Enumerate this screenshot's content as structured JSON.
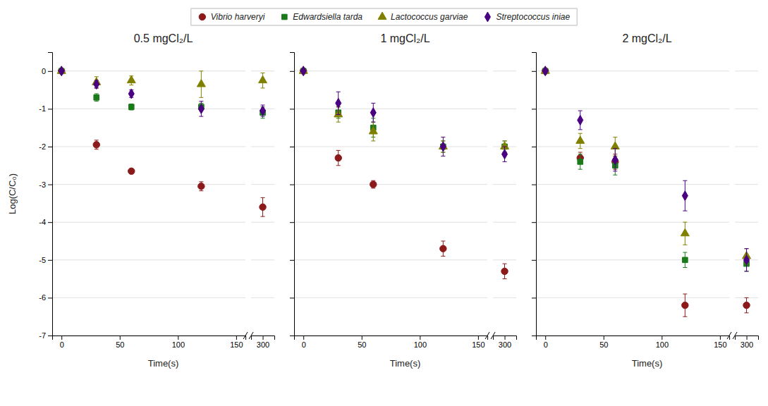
{
  "chart_data": [
    {
      "type": "scatter",
      "title": "0.5 mgCl₂/L",
      "xlabel": "Time(s)",
      "ylabel": "Log(C/C₀)",
      "xlim": [
        -8,
        312
      ],
      "xticks": [
        0,
        50,
        100,
        150,
        300
      ],
      "ylim": [
        -7,
        0.5
      ],
      "yticks": [
        0,
        -1,
        -2,
        -3,
        -4,
        -5,
        -6,
        -7
      ],
      "grid": true,
      "legend": "top",
      "series": [
        {
          "name": "Vibrio harveryi",
          "color": "#8B1A1A",
          "marker": "circle",
          "x": [
            0,
            30,
            60,
            120,
            300
          ],
          "values": [
            0,
            -1.95,
            -2.65,
            -3.05,
            -3.6
          ],
          "yerr": [
            0,
            0.12,
            0.0,
            0.12,
            0.25
          ]
        },
        {
          "name": "Edwardsiella tarda",
          "color": "#1a7a1a",
          "marker": "square",
          "x": [
            0,
            30,
            60,
            120,
            300
          ],
          "values": [
            0,
            -0.7,
            -0.95,
            -0.95,
            -1.1
          ],
          "yerr": [
            0,
            0.1,
            0.08,
            0.1,
            0.15
          ]
        },
        {
          "name": "Lactococcus garviae",
          "color": "#808000",
          "marker": "triangle",
          "x": [
            0,
            30,
            60,
            120,
            300
          ],
          "values": [
            0,
            -0.3,
            -0.25,
            -0.35,
            -0.25
          ],
          "yerr": [
            0,
            0.15,
            0.12,
            0.35,
            0.2
          ]
        },
        {
          "name": "Streptococcus iniae",
          "color": "#4B0082",
          "marker": "diamond",
          "x": [
            0,
            30,
            60,
            120,
            300
          ],
          "values": [
            0,
            -0.35,
            -0.6,
            -1.0,
            -1.05
          ],
          "yerr": [
            0,
            0.1,
            0.1,
            0.2,
            0.15
          ]
        }
      ]
    },
    {
      "type": "scatter",
      "title": "1 mgCl₂/L",
      "xlabel": "Time(s)",
      "xlim": [
        -8,
        312
      ],
      "xticks": [
        0,
        50,
        100,
        150,
        300
      ],
      "ylim": [
        -7,
        0.5
      ],
      "yticks": [
        0,
        -1,
        -2,
        -3,
        -4,
        -5,
        -6,
        -7
      ],
      "grid": true,
      "tick_labels": "x",
      "series": [
        {
          "name": "Vibrio harveryi",
          "color": "#8B1A1A",
          "marker": "circle",
          "x": [
            0,
            30,
            60,
            120,
            300
          ],
          "values": [
            0,
            -2.3,
            -3.0,
            -4.7,
            -5.3
          ],
          "yerr": [
            0,
            0.2,
            0.1,
            0.2,
            0.2
          ]
        },
        {
          "name": "Edwardsiella tarda",
          "color": "#1a7a1a",
          "marker": "square",
          "x": [
            0,
            30,
            60,
            120,
            300
          ],
          "values": [
            0,
            -1.1,
            -1.5,
            -2.0,
            -2.0
          ],
          "yerr": [
            0,
            0.15,
            0.25,
            0.15,
            0.15
          ]
        },
        {
          "name": "Lactococcus garviae",
          "color": "#808000",
          "marker": "triangle",
          "x": [
            0,
            30,
            60,
            120,
            300
          ],
          "values": [
            0,
            -1.15,
            -1.6,
            -2.0,
            -2.0
          ],
          "yerr": [
            0,
            0.2,
            0.25,
            0.15,
            0.15
          ]
        },
        {
          "name": "Streptococcus iniae",
          "color": "#4B0082",
          "marker": "diamond",
          "x": [
            0,
            30,
            60,
            120,
            300
          ],
          "values": [
            0,
            -0.85,
            -1.1,
            -2.0,
            -2.2
          ],
          "yerr": [
            0,
            0.3,
            0.25,
            0.25,
            0.2
          ]
        }
      ]
    },
    {
      "type": "scatter",
      "title": "2 mgCl₂/L",
      "xlabel": "Time(s)",
      "xlim": [
        -8,
        312
      ],
      "xticks": [
        0,
        50,
        100,
        150,
        300
      ],
      "ylim": [
        -7,
        0.5
      ],
      "yticks": [
        0,
        -1,
        -2,
        -3,
        -4,
        -5,
        -6,
        -7
      ],
      "grid": true,
      "tick_labels": "x",
      "series": [
        {
          "name": "Vibrio harveryi",
          "color": "#8B1A1A",
          "marker": "circle",
          "x": [
            0,
            30,
            60,
            120,
            300
          ],
          "values": [
            0,
            -2.3,
            -2.4,
            -6.2,
            -6.2
          ],
          "yerr": [
            0,
            0.15,
            0.2,
            0.3,
            0.2
          ]
        },
        {
          "name": "Edwardsiella tarda",
          "color": "#1a7a1a",
          "marker": "square",
          "x": [
            0,
            30,
            60,
            120,
            300
          ],
          "values": [
            0,
            -2.4,
            -2.5,
            -5.0,
            -5.1
          ],
          "yerr": [
            0,
            0.2,
            0.25,
            0.2,
            0.2
          ]
        },
        {
          "name": "Lactococcus garviae",
          "color": "#808000",
          "marker": "triangle",
          "x": [
            0,
            30,
            60,
            120,
            300
          ],
          "values": [
            0,
            -1.85,
            -2.0,
            -4.3,
            -4.9
          ],
          "yerr": [
            0,
            0.2,
            0.25,
            0.3,
            0.2
          ]
        },
        {
          "name": "Streptococcus iniae",
          "color": "#4B0082",
          "marker": "diamond",
          "x": [
            0,
            30,
            60,
            120,
            300
          ],
          "values": [
            0,
            -1.3,
            -2.35,
            -3.3,
            -5.0
          ],
          "yerr": [
            0,
            0.25,
            0.3,
            0.4,
            0.3
          ]
        }
      ]
    }
  ]
}
